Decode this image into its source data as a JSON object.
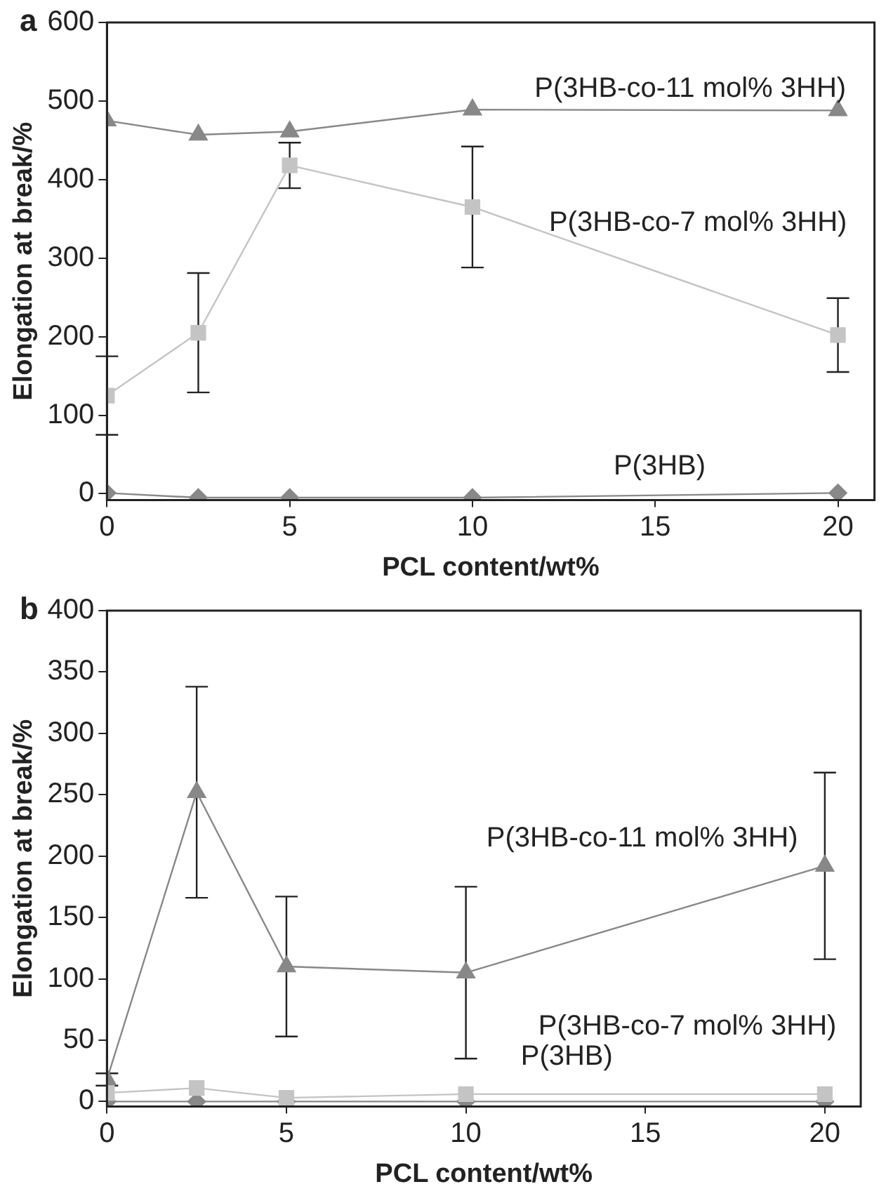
{
  "chart_data": [
    {
      "type": "line",
      "title": "a",
      "xlabel": "PCL content/wt%",
      "ylabel": "Elongation at break/%",
      "x": [
        0,
        2.5,
        5,
        10,
        20
      ],
      "xlim": [
        0,
        21
      ],
      "xticks": [
        0,
        5,
        10,
        15,
        20
      ],
      "ylim": [
        -8,
        600
      ],
      "yticks": [
        0,
        100,
        200,
        300,
        400,
        500,
        600
      ],
      "grid": false,
      "legend": false,
      "series": [
        {
          "name": "P(3HB-co-11 mol% 3HH)",
          "color": "#888888",
          "marker": "triangle",
          "values": [
            475,
            457,
            461,
            489,
            488
          ]
        },
        {
          "name": "P(3HB-co-7 mol% 3HH)",
          "color": "#c4c4c4",
          "marker": "square",
          "values": [
            125,
            205,
            418,
            365,
            202
          ],
          "errors": [
            50,
            76,
            29,
            77,
            47
          ]
        },
        {
          "name": "P(3HB)",
          "color": "#888888",
          "marker": "diamond",
          "values": [
            1,
            -5,
            -5,
            -5,
            1
          ]
        }
      ]
    },
    {
      "type": "line",
      "title": "b",
      "xlabel": "PCL content/wt%",
      "ylabel": "Elongation at break/%",
      "x": [
        0,
        2.5,
        5,
        10,
        20
      ],
      "xlim": [
        0,
        21
      ],
      "xticks": [
        0,
        5,
        10,
        15,
        20
      ],
      "ylim": [
        -4,
        400
      ],
      "yticks": [
        0,
        50,
        100,
        150,
        200,
        250,
        300,
        350,
        400
      ],
      "grid": false,
      "legend": false,
      "series": [
        {
          "name": "P(3HB-co-11 mol% 3HH)",
          "color": "#888888",
          "marker": "triangle",
          "values": [
            18,
            252,
            110,
            105,
            192
          ],
          "errors": [
            5,
            86,
            57,
            70,
            76
          ]
        },
        {
          "name": "P(3HB-co-7 mol% 3HH)",
          "color": "#c4c4c4",
          "marker": "square",
          "values": [
            7,
            11,
            3,
            6,
            6
          ]
        },
        {
          "name": "P(3HB)",
          "color": "#888888",
          "marker": "diamond",
          "values": [
            0,
            0,
            0,
            0,
            0
          ]
        }
      ]
    }
  ]
}
